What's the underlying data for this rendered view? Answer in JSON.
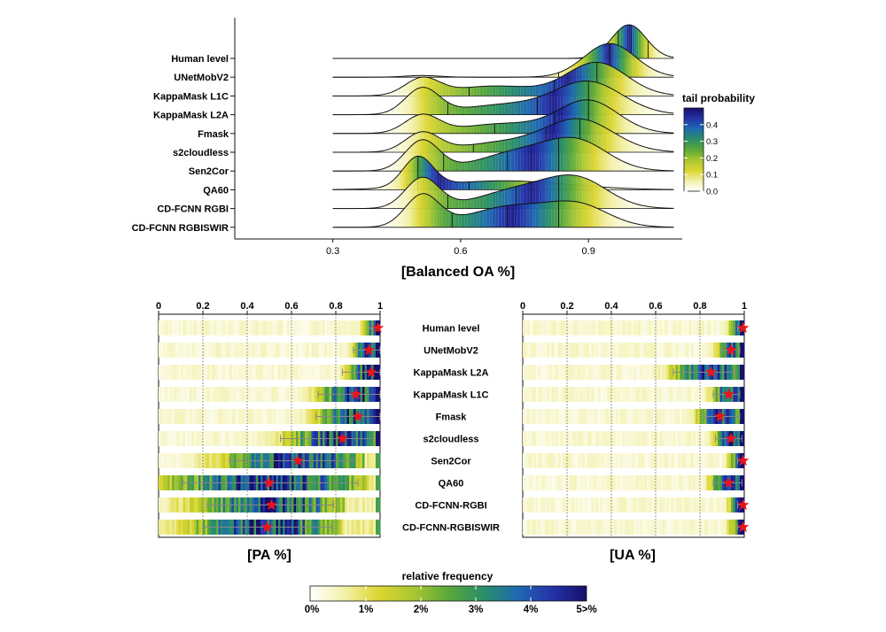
{
  "chart_data": [
    {
      "type": "ridgeline",
      "xlabel": "[Balanced OA %]",
      "xticks": [
        0.3,
        0.6,
        0.9
      ],
      "xlim": [
        0.07,
        1.12
      ],
      "series": [
        {
          "name": "Human level",
          "peaks": [
            {
              "mu": 0.995,
              "sd": 0.04,
              "w": 1
            }
          ],
          "lines": [
            0.97,
            1.0,
            1.04
          ],
          "start": 0.3,
          "end": 1.1
        },
        {
          "name": "UNetMobV2",
          "peaks": [
            {
              "mu": 0.95,
              "sd": 0.06,
              "w": 1
            },
            {
              "mu": 0.51,
              "sd": 0.04,
              "w": 0.05
            }
          ],
          "lines": [
            0.83,
            0.95
          ],
          "start": 0.3,
          "end": 1.1
        },
        {
          "name": "KappaMask L1C",
          "peaks": [
            {
              "mu": 0.92,
              "sd": 0.07,
              "w": 1
            },
            {
              "mu": 0.51,
              "sd": 0.04,
              "w": 0.5
            },
            {
              "mu": 0.68,
              "sd": 0.1,
              "w": 0.3
            }
          ],
          "lines": [
            0.62,
            0.82,
            0.92
          ],
          "start": 0.3,
          "end": 1.1
        },
        {
          "name": "KappaMask L2A",
          "peaks": [
            {
              "mu": 0.9,
              "sd": 0.08,
              "w": 1
            },
            {
              "mu": 0.51,
              "sd": 0.04,
              "w": 0.8
            },
            {
              "mu": 0.7,
              "sd": 0.1,
              "w": 0.3
            }
          ],
          "lines": [
            0.57,
            0.78,
            0.9
          ],
          "start": 0.3,
          "end": 1.1
        },
        {
          "name": "Fmask",
          "peaks": [
            {
              "mu": 0.9,
              "sd": 0.07,
              "w": 1
            },
            {
              "mu": 0.51,
              "sd": 0.04,
              "w": 0.55
            },
            {
              "mu": 0.7,
              "sd": 0.1,
              "w": 0.3
            }
          ],
          "lines": [
            0.68,
            0.82,
            0.9
          ],
          "start": 0.3,
          "end": 1.1
        },
        {
          "name": "s2cloudless",
          "peaks": [
            {
              "mu": 0.88,
              "sd": 0.08,
              "w": 1
            },
            {
              "mu": 0.51,
              "sd": 0.04,
              "w": 0.6
            },
            {
              "mu": 0.7,
              "sd": 0.1,
              "w": 0.3
            }
          ],
          "lines": [
            0.63,
            0.8,
            0.88
          ],
          "start": 0.3,
          "end": 1.1
        },
        {
          "name": "Sen2Cor",
          "peaks": [
            {
              "mu": 0.51,
              "sd": 0.04,
              "w": 0.9
            },
            {
              "mu": 0.75,
              "sd": 0.1,
              "w": 0.6
            },
            {
              "mu": 0.88,
              "sd": 0.07,
              "w": 0.7
            }
          ],
          "lines": [
            0.56,
            0.71,
            0.83
          ],
          "start": 0.3,
          "end": 1.1
        },
        {
          "name": "QA60",
          "peaks": [
            {
              "mu": 0.5,
              "sd": 0.035,
              "w": 1
            },
            {
              "mu": 0.7,
              "sd": 0.15,
              "w": 0.3
            }
          ],
          "lines": [
            0.5,
            0.62,
            0.76
          ],
          "start": 0.3,
          "end": 1.1
        },
        {
          "name": "CD-FCNN RGBI",
          "peaks": [
            {
              "mu": 0.51,
              "sd": 0.04,
              "w": 0.9
            },
            {
              "mu": 0.75,
              "sd": 0.1,
              "w": 0.6
            },
            {
              "mu": 0.88,
              "sd": 0.07,
              "w": 0.7
            }
          ],
          "lines": [
            0.57,
            0.73,
            0.83
          ],
          "start": 0.3,
          "end": 1.1
        },
        {
          "name": "CD-FCNN RGBISWIR",
          "peaks": [
            {
              "mu": 0.51,
              "sd": 0.04,
              "w": 0.9
            },
            {
              "mu": 0.72,
              "sd": 0.1,
              "w": 0.6
            },
            {
              "mu": 0.88,
              "sd": 0.07,
              "w": 0.55
            }
          ],
          "lines": [
            0.58,
            0.71,
            0.83
          ],
          "start": 0.3,
          "end": 1.1
        }
      ],
      "legend": {
        "title": "tail probability",
        "ticks": [
          0.0,
          0.1,
          0.2,
          0.3,
          0.4
        ],
        "tick_labels": [
          "0.0",
          "0.1",
          "0.2",
          "0.3",
          "0.4"
        ],
        "max": 0.5,
        "position": "right"
      }
    },
    {
      "type": "heatmap-strips",
      "panels": [
        {
          "id": "pa",
          "xlabel": "[PA %]",
          "xticks": [
            0,
            0.2,
            0.4,
            0.6,
            0.8,
            1
          ],
          "xtick_labels": [
            "0",
            "0.2",
            "0.4",
            "0.6",
            "0.8",
            "1"
          ],
          "rows": [
            {
              "name": "Human level",
              "median": 0.99,
              "lo": 0.95,
              "hi": 1.0
            },
            {
              "name": "UNetMobV2",
              "median": 0.95,
              "lo": 0.88,
              "hi": 1.0
            },
            {
              "name": "KappaMask L2A",
              "median": 0.96,
              "lo": 0.83,
              "hi": 1.0
            },
            {
              "name": "KappaMask L1C",
              "median": 0.89,
              "lo": 0.72,
              "hi": 1.0
            },
            {
              "name": "Fmask",
              "median": 0.9,
              "lo": 0.71,
              "hi": 1.0
            },
            {
              "name": "s2cloudless",
              "median": 0.83,
              "lo": 0.55,
              "hi": 0.97
            },
            {
              "name": "Sen2Cor",
              "median": 0.63,
              "lo": 0.32,
              "hi": 0.88
            },
            {
              "name": "QA60",
              "median": 0.5,
              "lo": 0.11,
              "hi": 0.9
            },
            {
              "name": "CD-FCNN-RGBI",
              "median": 0.51,
              "lo": 0.22,
              "hi": 0.79
            },
            {
              "name": "CD-FCNN-RGBISWIR",
              "median": 0.49,
              "lo": 0.2,
              "hi": 0.78
            }
          ]
        },
        {
          "id": "ua",
          "xlabel": "[UA %]",
          "xticks": [
            0,
            0.2,
            0.4,
            0.6,
            0.8,
            1
          ],
          "xtick_labels": [
            "0",
            "0.2",
            "0.4",
            "0.6",
            "0.8",
            "1"
          ],
          "rows": [
            {
              "name": "Human level",
              "median": 0.995,
              "lo": 0.97,
              "hi": 1.0
            },
            {
              "name": "UNetMobV2",
              "median": 0.94,
              "lo": 0.9,
              "hi": 0.98
            },
            {
              "name": "KappaMask L2A",
              "median": 0.85,
              "lo": 0.68,
              "hi": 0.96
            },
            {
              "name": "KappaMask L1C",
              "median": 0.93,
              "lo": 0.86,
              "hi": 0.98
            },
            {
              "name": "Fmask",
              "median": 0.89,
              "lo": 0.82,
              "hi": 0.98
            },
            {
              "name": "s2cloudless",
              "median": 0.94,
              "lo": 0.87,
              "hi": 0.99
            },
            {
              "name": "Sen2Cor",
              "median": 0.995,
              "lo": 0.97,
              "hi": 1.0
            },
            {
              "name": "QA60",
              "median": 0.93,
              "lo": 0.86,
              "hi": 0.99
            },
            {
              "name": "CD-FCNN-RGBI",
              "median": 0.995,
              "lo": 0.97,
              "hi": 1.0
            },
            {
              "name": "CD-FCNN-RGBISWIR",
              "median": 0.995,
              "lo": 0.97,
              "hi": 1.0
            }
          ]
        }
      ],
      "legend": {
        "title": "relative frequency",
        "tick_labels": [
          "0%",
          "1%",
          "2%",
          "3%",
          "4%",
          "5>%"
        ],
        "position": "bottom"
      }
    }
  ],
  "colors": {
    "scale": [
      "#ffffff",
      "#f2f0a8",
      "#dcd630",
      "#a9c632",
      "#5aa83a",
      "#2a8f67",
      "#1e6ab0",
      "#2532a8",
      "#16106a"
    ],
    "star": "#e8141e",
    "grid": "#555555",
    "axis": "#111111"
  }
}
